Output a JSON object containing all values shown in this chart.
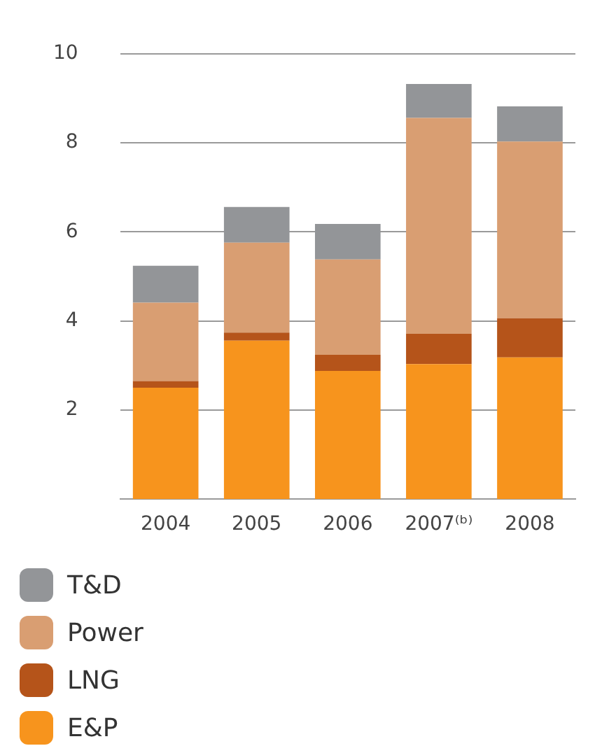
{
  "chart_data": {
    "type": "bar",
    "stacked": true,
    "categories": [
      "2004",
      "2005",
      "2006",
      "2007⁽ᵇ⁾",
      "2008"
    ],
    "series": [
      {
        "name": "E&P",
        "color": "#f7941d",
        "values": [
          2.5,
          3.56,
          2.88,
          3.03,
          3.18
        ]
      },
      {
        "name": "LNG",
        "color": "#b5541a",
        "values": [
          0.15,
          0.18,
          0.36,
          0.68,
          0.88
        ]
      },
      {
        "name": "Power",
        "color": "#d99e72",
        "values": [
          1.76,
          2.02,
          2.14,
          4.85,
          3.97
        ]
      },
      {
        "name": "T&D",
        "color": "#939598",
        "values": [
          0.83,
          0.8,
          0.8,
          0.76,
          0.79
        ]
      }
    ],
    "ylim": [
      0,
      10
    ],
    "yticks": [
      2,
      4,
      6,
      8,
      10
    ],
    "grid": "y",
    "legend": "bottom"
  }
}
